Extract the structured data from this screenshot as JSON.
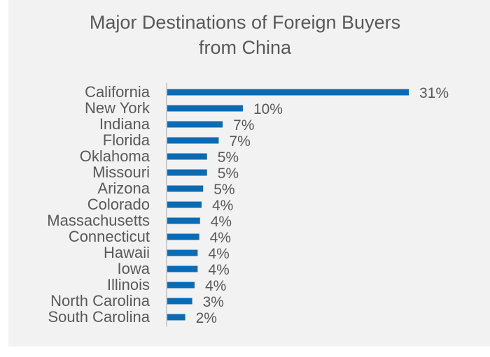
{
  "chart_data": {
    "type": "bar",
    "orientation": "horizontal",
    "title": "Major Destinations of Foreign Buyers from China",
    "title_lines": [
      "Major Destinations of Foreign Buyers",
      "from China"
    ],
    "categories": [
      "California",
      "New York",
      "Indiana",
      "Florida",
      "Oklahoma",
      "Missouri",
      "Arizona",
      "Colorado",
      "Massachusetts",
      "Connecticut",
      "Hawaii",
      "Iowa",
      "Illinois",
      "North Carolina",
      "South Carolina"
    ],
    "values": [
      31,
      10,
      7,
      7,
      5,
      5,
      5,
      4,
      4,
      4,
      4,
      4,
      4,
      3,
      2
    ],
    "raw_values": [
      31,
      9.7,
      7.1,
      6.6,
      5.1,
      5.1,
      4.6,
      4.4,
      4.2,
      4.1,
      3.9,
      3.9,
      3.5,
      3.2,
      2.3
    ],
    "value_labels": [
      "31%",
      "10%",
      "7%",
      "7%",
      "5%",
      "5%",
      "5%",
      "4%",
      "4%",
      "4%",
      "4%",
      "4%",
      "4%",
      "3%",
      "2%"
    ],
    "unit": "%",
    "xlim": [
      0,
      31
    ],
    "grid": false,
    "legend": "none",
    "bar_color": "#0a6bb5",
    "axis_color": "#bfbfbf",
    "text_color": "#595959",
    "background_color": "#f2f2f2"
  }
}
